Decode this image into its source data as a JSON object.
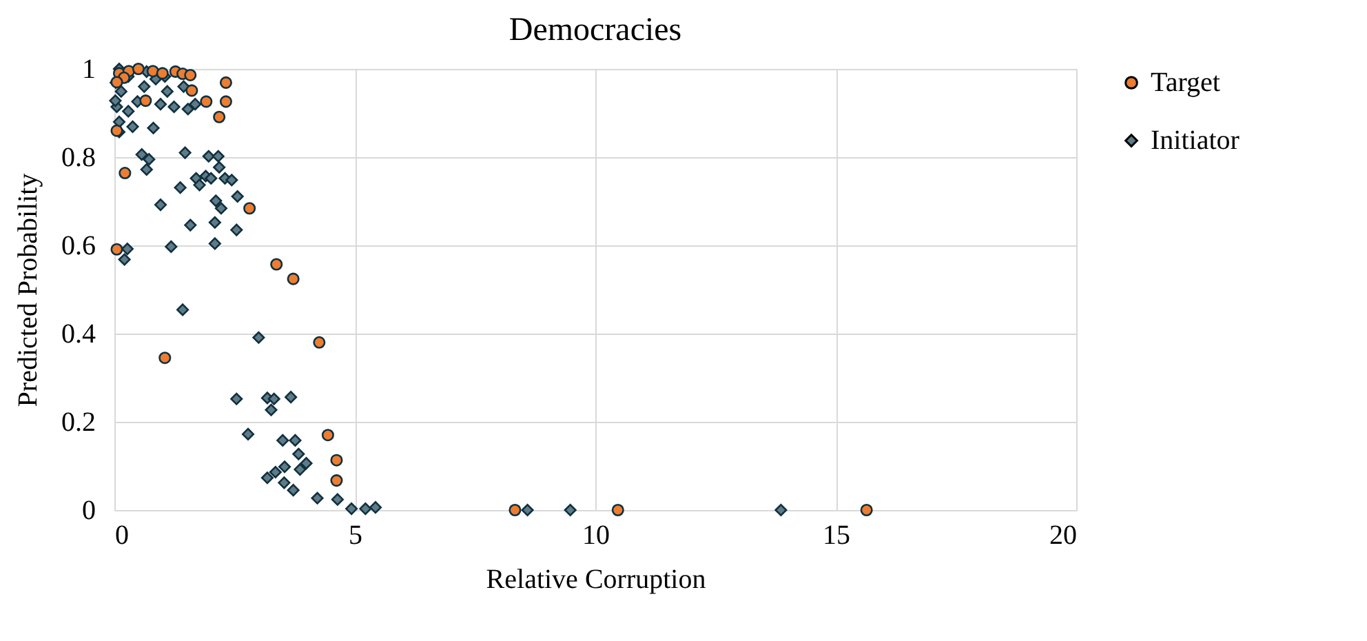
{
  "chart_data": {
    "type": "scatter",
    "title": "Democracies",
    "xlabel": "Relative Corruption",
    "ylabel": "Predicted Probability",
    "xlim": [
      0,
      20
    ],
    "xticks": [
      0,
      5,
      10,
      15,
      20
    ],
    "ylim": [
      0,
      1
    ],
    "yticks": [
      0,
      0.2,
      0.4,
      0.6,
      0.8,
      1
    ],
    "grid": true,
    "legend": "right",
    "series": [
      {
        "name": "Target",
        "color": "#ed7d31",
        "marker": "circle",
        "x": [
          1.27,
          1.42,
          1.58,
          1.61,
          1.91,
          2.18,
          2.32,
          2.32,
          0.65,
          0.1,
          0.3,
          0.5,
          0.8,
          1.0,
          0.2,
          0.05,
          0.05,
          0.22,
          0.05,
          2.81,
          3.37,
          3.72,
          1.05,
          4.26,
          4.44,
          4.62,
          4.62,
          8.33,
          10.47,
          15.64
        ],
        "values": [
          0.994,
          0.989,
          0.986,
          0.951,
          0.926,
          0.891,
          0.969,
          0.926,
          0.928,
          0.99,
          0.995,
          1.0,
          0.995,
          0.99,
          0.98,
          0.97,
          0.86,
          0.764,
          0.591,
          0.684,
          0.557,
          0.524,
          0.345,
          0.38,
          0.17,
          0.113,
          0.067,
          0,
          0,
          0
        ]
      },
      {
        "name": "Initiator",
        "color": "#5f7b88",
        "marker": "diamond",
        "x": [
          0.57,
          0.72,
          0.67,
          1.47,
          1.96,
          2.16,
          2.18,
          1.7,
          1.9,
          2.01,
          2.3,
          2.44,
          1.37,
          1.77,
          0.96,
          2.11,
          2.22,
          2.56,
          1.58,
          2.09,
          2.54,
          1.18,
          2.09,
          0.27,
          0.21,
          1.42,
          3.0,
          2.54,
          3.18,
          3.32,
          3.26,
          3.67,
          2.78,
          3.5,
          3.76,
          3.83,
          3.99,
          3.54,
          3.86,
          3.35,
          3.18,
          3.53,
          3.72,
          4.22,
          4.64,
          4.93,
          5.22,
          5.43,
          8.59,
          9.48,
          13.86,
          0.1,
          0.29,
          0.14,
          0.05,
          0.1,
          0.1,
          0.38,
          0.81,
          0.96,
          1.24,
          1.53,
          1.68,
          1.44,
          1.1,
          0.62,
          0.86,
          0.48,
          0.29,
          0.02,
          0.03,
          0.67,
          1.05
        ],
        "values": [
          0.806,
          0.795,
          0.772,
          0.81,
          0.802,
          0.802,
          0.777,
          0.752,
          0.757,
          0.752,
          0.752,
          0.748,
          0.731,
          0.737,
          0.692,
          0.701,
          0.684,
          0.711,
          0.646,
          0.652,
          0.635,
          0.597,
          0.604,
          0.592,
          0.568,
          0.454,
          0.391,
          0.252,
          0.254,
          0.252,
          0.227,
          0.256,
          0.172,
          0.158,
          0.158,
          0.127,
          0.106,
          0.098,
          0.092,
          0.086,
          0.073,
          0.062,
          0.045,
          0.027,
          0.024,
          0.003,
          0.003,
          0.006,
          0,
          0,
          0,
          1.0,
          0.983,
          0.949,
          0.914,
          0.88,
          0.857,
          0.869,
          0.866,
          0.92,
          0.914,
          0.909,
          0.92,
          0.96,
          0.949,
          0.96,
          0.977,
          0.926,
          0.904,
          0.928,
          0.969,
          0.994,
          0.983
        ]
      }
    ]
  }
}
